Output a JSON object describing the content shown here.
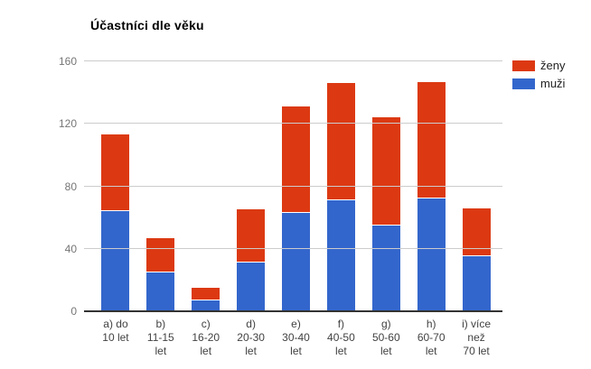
{
  "title": "Účastníci dle věku",
  "legend": {
    "items": [
      {
        "id": "zeny",
        "label": "ženy",
        "color": "#dc3912"
      },
      {
        "id": "muzi",
        "label": "muži",
        "color": "#3366cc"
      }
    ]
  },
  "chart_data": {
    "type": "bar",
    "stacked": true,
    "title": "Účastníci dle věku",
    "xlabel": "",
    "ylabel": "",
    "ylim": [
      0,
      160
    ],
    "yticks": [
      0,
      40,
      80,
      120,
      160
    ],
    "grid": true,
    "legend_position": "right",
    "categories": [
      "a) do 10 let",
      "b) 11-15 let",
      "c) 16-20 let",
      "d) 20-30 let",
      "e) 30-40 let",
      "f) 40-50 let",
      "g) 50-60 let",
      "h) 60-70 let",
      "i) více než 70 let"
    ],
    "category_label_lines": [
      [
        "a) do",
        "10 let"
      ],
      [
        "b)",
        "11-15",
        "let"
      ],
      [
        "c)",
        "16-20",
        "let"
      ],
      [
        "d)",
        "20-30",
        "let"
      ],
      [
        "e)",
        "30-40",
        "let"
      ],
      [
        "f)",
        "40-50",
        "let"
      ],
      [
        "g)",
        "50-60",
        "let"
      ],
      [
        "h)",
        "60-70",
        "let"
      ],
      [
        "i) více",
        "než",
        "70 let"
      ]
    ],
    "series": [
      {
        "name": "ženy",
        "color": "#dc3912",
        "values": [
          49,
          22,
          8,
          34,
          68,
          75,
          69,
          75,
          31
        ]
      },
      {
        "name": "muži",
        "color": "#3366cc",
        "values": [
          64,
          25,
          7,
          31,
          63,
          71,
          55,
          72,
          35
        ]
      }
    ],
    "stack_order_bottom_to_top": [
      "muži",
      "ženy"
    ],
    "totals": [
      113,
      47,
      15,
      65,
      131,
      146,
      124,
      147,
      66
    ]
  },
  "colors": {
    "background": "#ffffff",
    "gridline": "#cccccc",
    "axis_baseline": "#333333",
    "y_tick_text": "#757575",
    "x_label_text": "#424242",
    "title_text": "#000000",
    "legend_text": "#222222"
  }
}
